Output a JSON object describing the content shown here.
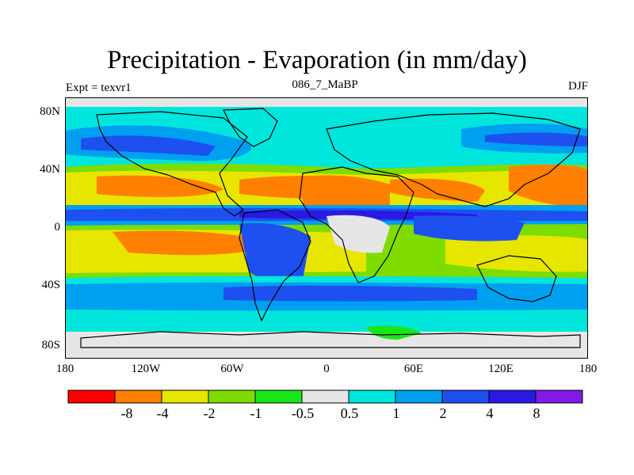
{
  "title": "Precipitation - Evaporation (in mm/day)",
  "subtitle_left": "Expt = texvr1",
  "subtitle_center": "086_7_MaBP",
  "subtitle_right": "DJF",
  "y_ticks": [
    "80N",
    "40N",
    "0",
    "40S",
    "80S"
  ],
  "x_ticks": [
    "180",
    "120W",
    "60W",
    "0",
    "60E",
    "120E",
    "180"
  ],
  "colorbar": {
    "colors": [
      "#ff0000",
      "#ff7f00",
      "#e6e600",
      "#7fdc00",
      "#19e619",
      "#e6e6e6",
      "#00e6dc",
      "#00a0f0",
      "#1e50f0",
      "#2b19e6",
      "#8219e6"
    ],
    "labels": [
      "-8",
      "-4",
      "-2",
      "-1",
      "-0.5",
      "0.5",
      "1",
      "2",
      "4",
      "8"
    ]
  }
}
